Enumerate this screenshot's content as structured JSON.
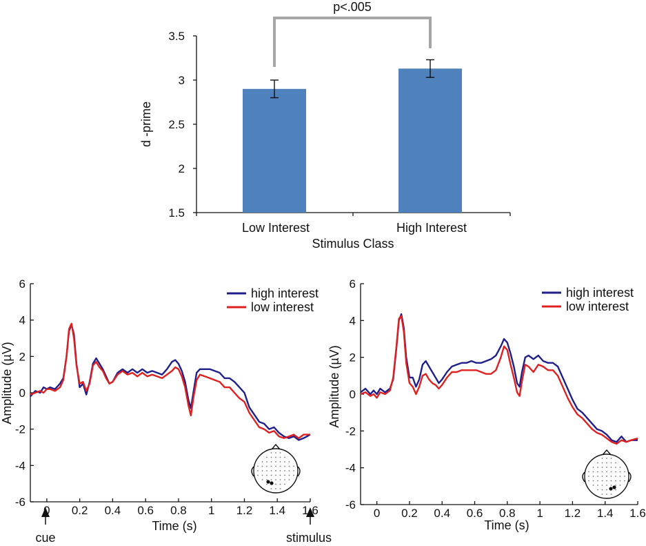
{
  "chart_data": [
    {
      "type": "bar",
      "title": "",
      "xlabel": "Stimulus Class",
      "ylabel": "d -prime",
      "ylim": [
        1.5,
        3.5
      ],
      "yticks": [
        "1.5",
        "2",
        "2.5",
        "3",
        "3.5"
      ],
      "categories": [
        "Low Interest",
        "High Interest"
      ],
      "values": [
        2.9,
        3.13
      ],
      "errors": [
        0.1,
        0.1
      ],
      "annotation": "p<.005",
      "bar_color": "#4f81bd"
    },
    {
      "type": "line",
      "xlabel": "Time (s)",
      "ylabel": "Amplitude (µV)",
      "xlim": [
        -0.1,
        1.6
      ],
      "ylim": [
        -6,
        6
      ],
      "xticks": [
        "0",
        "0.2",
        "0.4",
        "0.6",
        "0.8",
        "1",
        "1.2",
        "1.4",
        "1.6"
      ],
      "yticks": [
        "6",
        "4",
        "2",
        "0",
        "-2",
        "-4",
        "-6"
      ],
      "annotations": [
        "cue",
        "stimulus"
      ],
      "series": [
        {
          "name": "high interest",
          "color": "#1f1f8c",
          "x": [
            -0.1,
            -0.07,
            -0.04,
            -0.02,
            0.0,
            0.02,
            0.05,
            0.08,
            0.1,
            0.12,
            0.135,
            0.15,
            0.165,
            0.18,
            0.2,
            0.22,
            0.24,
            0.26,
            0.28,
            0.3,
            0.32,
            0.34,
            0.36,
            0.38,
            0.4,
            0.43,
            0.46,
            0.49,
            0.52,
            0.55,
            0.58,
            0.61,
            0.64,
            0.67,
            0.7,
            0.73,
            0.76,
            0.78,
            0.8,
            0.82,
            0.84,
            0.86,
            0.875,
            0.89,
            0.91,
            0.93,
            0.96,
            0.99,
            1.02,
            1.05,
            1.08,
            1.11,
            1.14,
            1.17,
            1.2,
            1.23,
            1.26,
            1.29,
            1.32,
            1.35,
            1.38,
            1.41,
            1.44,
            1.47,
            1.5,
            1.53,
            1.56,
            1.6
          ],
          "values": [
            -0.2,
            0.1,
            0.0,
            0.3,
            0.2,
            0.3,
            0.2,
            0.5,
            0.8,
            2.0,
            3.4,
            3.75,
            3.2,
            1.6,
            0.3,
            0.5,
            -0.1,
            0.6,
            1.6,
            1.9,
            1.6,
            1.3,
            0.9,
            0.5,
            0.6,
            1.1,
            1.3,
            1.1,
            1.3,
            1.1,
            1.3,
            1.1,
            1.2,
            1.1,
            1.0,
            1.3,
            1.7,
            1.8,
            1.6,
            1.2,
            0.6,
            -0.4,
            -0.85,
            0.0,
            1.1,
            1.3,
            1.3,
            1.3,
            1.2,
            1.1,
            0.8,
            0.8,
            0.6,
            0.3,
            0.0,
            -0.8,
            -1.2,
            -1.6,
            -1.7,
            -2.0,
            -1.9,
            -2.2,
            -2.4,
            -2.5,
            -2.4,
            -2.6,
            -2.5,
            -2.3
          ]
        },
        {
          "name": "low interest",
          "color": "#e02020",
          "x": [
            -0.1,
            -0.07,
            -0.04,
            -0.02,
            0.0,
            0.02,
            0.05,
            0.08,
            0.1,
            0.12,
            0.135,
            0.15,
            0.165,
            0.18,
            0.2,
            0.22,
            0.24,
            0.26,
            0.28,
            0.3,
            0.32,
            0.34,
            0.36,
            0.38,
            0.4,
            0.43,
            0.46,
            0.49,
            0.52,
            0.55,
            0.58,
            0.61,
            0.64,
            0.67,
            0.7,
            0.73,
            0.76,
            0.78,
            0.8,
            0.82,
            0.84,
            0.86,
            0.875,
            0.89,
            0.91,
            0.93,
            0.96,
            0.99,
            1.02,
            1.05,
            1.08,
            1.11,
            1.14,
            1.17,
            1.2,
            1.23,
            1.26,
            1.29,
            1.32,
            1.35,
            1.38,
            1.41,
            1.44,
            1.47,
            1.5,
            1.53,
            1.56,
            1.6
          ],
          "values": [
            -0.1,
            0.0,
            0.1,
            0.0,
            0.2,
            0.2,
            0.1,
            0.3,
            0.7,
            2.0,
            3.5,
            3.8,
            3.0,
            1.5,
            0.5,
            0.6,
            0.1,
            0.5,
            1.5,
            1.7,
            1.4,
            1.2,
            0.8,
            0.5,
            0.6,
            1.0,
            1.2,
            1.0,
            1.1,
            0.9,
            1.1,
            0.9,
            1.0,
            0.9,
            0.8,
            1.0,
            1.2,
            1.4,
            1.3,
            0.9,
            0.3,
            -0.7,
            -1.25,
            -0.3,
            0.7,
            1.0,
            0.9,
            0.8,
            0.7,
            0.6,
            0.3,
            0.3,
            0.0,
            -0.3,
            -0.5,
            -1.1,
            -1.5,
            -1.9,
            -2.0,
            -2.2,
            -2.1,
            -2.4,
            -2.5,
            -2.4,
            -2.3,
            -2.5,
            -2.3,
            -2.3
          ]
        }
      ],
      "electrodes": "left"
    },
    {
      "type": "line",
      "xlabel": "Time (s)",
      "ylabel": "Amplitude (µV)",
      "xlim": [
        -0.1,
        1.6
      ],
      "ylim": [
        -6,
        6
      ],
      "xticks": [
        "0",
        "0.2",
        "0.4",
        "0.6",
        "0.8",
        "1",
        "1.2",
        "1.4",
        "1.6"
      ],
      "yticks": [
        "6",
        "4",
        "2",
        "0",
        "-2",
        "-4",
        "-6"
      ],
      "series": [
        {
          "name": "high interest",
          "color": "#1f1f8c",
          "x": [
            -0.1,
            -0.07,
            -0.04,
            -0.02,
            0.0,
            0.02,
            0.05,
            0.08,
            0.1,
            0.12,
            0.135,
            0.15,
            0.165,
            0.18,
            0.2,
            0.22,
            0.24,
            0.26,
            0.28,
            0.3,
            0.32,
            0.34,
            0.36,
            0.38,
            0.4,
            0.43,
            0.46,
            0.49,
            0.52,
            0.55,
            0.58,
            0.61,
            0.64,
            0.67,
            0.7,
            0.73,
            0.76,
            0.78,
            0.8,
            0.82,
            0.84,
            0.86,
            0.875,
            0.89,
            0.91,
            0.93,
            0.96,
            0.99,
            1.02,
            1.05,
            1.08,
            1.11,
            1.14,
            1.17,
            1.2,
            1.23,
            1.26,
            1.29,
            1.32,
            1.35,
            1.38,
            1.41,
            1.44,
            1.47,
            1.5,
            1.53,
            1.56,
            1.6
          ],
          "values": [
            0.1,
            0.3,
            0.0,
            0.2,
            0.0,
            0.3,
            0.1,
            0.3,
            0.8,
            2.5,
            4.0,
            4.35,
            3.6,
            2.0,
            0.9,
            0.9,
            0.4,
            0.8,
            1.6,
            1.8,
            1.5,
            1.2,
            0.9,
            0.6,
            0.8,
            1.2,
            1.5,
            1.6,
            1.7,
            1.7,
            1.8,
            1.7,
            1.7,
            1.8,
            1.9,
            2.1,
            2.6,
            3.0,
            2.8,
            2.2,
            1.5,
            0.6,
            0.4,
            1.2,
            2.0,
            2.1,
            1.9,
            2.1,
            1.8,
            1.7,
            1.7,
            1.5,
            0.9,
            0.3,
            -0.3,
            -0.8,
            -1.0,
            -1.3,
            -1.6,
            -1.9,
            -2.0,
            -2.2,
            -2.5,
            -2.6,
            -2.3,
            -2.6,
            -2.5,
            -2.5
          ]
        },
        {
          "name": "low interest",
          "color": "#e02020",
          "x": [
            -0.1,
            -0.07,
            -0.04,
            -0.02,
            0.0,
            0.02,
            0.05,
            0.08,
            0.1,
            0.12,
            0.135,
            0.15,
            0.165,
            0.18,
            0.2,
            0.22,
            0.24,
            0.26,
            0.28,
            0.3,
            0.32,
            0.34,
            0.36,
            0.38,
            0.4,
            0.43,
            0.46,
            0.49,
            0.52,
            0.55,
            0.58,
            0.61,
            0.64,
            0.67,
            0.7,
            0.73,
            0.76,
            0.78,
            0.8,
            0.82,
            0.84,
            0.86,
            0.875,
            0.89,
            0.91,
            0.93,
            0.96,
            0.99,
            1.02,
            1.05,
            1.08,
            1.11,
            1.14,
            1.17,
            1.2,
            1.23,
            1.26,
            1.29,
            1.32,
            1.35,
            1.38,
            1.41,
            1.44,
            1.47,
            1.5,
            1.53,
            1.56,
            1.6
          ],
          "values": [
            0.0,
            0.1,
            -0.1,
            0.0,
            -0.2,
            0.1,
            0.0,
            0.2,
            0.9,
            2.6,
            4.1,
            4.25,
            3.4,
            1.7,
            0.6,
            0.4,
            0.0,
            0.4,
            1.0,
            1.1,
            0.8,
            0.6,
            0.5,
            0.3,
            0.5,
            0.9,
            1.2,
            1.2,
            1.3,
            1.3,
            1.3,
            1.3,
            1.2,
            1.1,
            1.1,
            1.3,
            2.0,
            2.6,
            2.4,
            1.6,
            0.9,
            0.1,
            -0.1,
            0.7,
            1.6,
            1.5,
            1.2,
            1.6,
            1.5,
            1.3,
            1.3,
            1.0,
            0.4,
            -0.2,
            -0.7,
            -1.1,
            -1.3,
            -1.6,
            -1.9,
            -2.1,
            -2.2,
            -2.4,
            -2.6,
            -2.7,
            -2.5,
            -2.6,
            -2.5,
            -2.4
          ]
        }
      ],
      "electrodes": "right"
    }
  ]
}
